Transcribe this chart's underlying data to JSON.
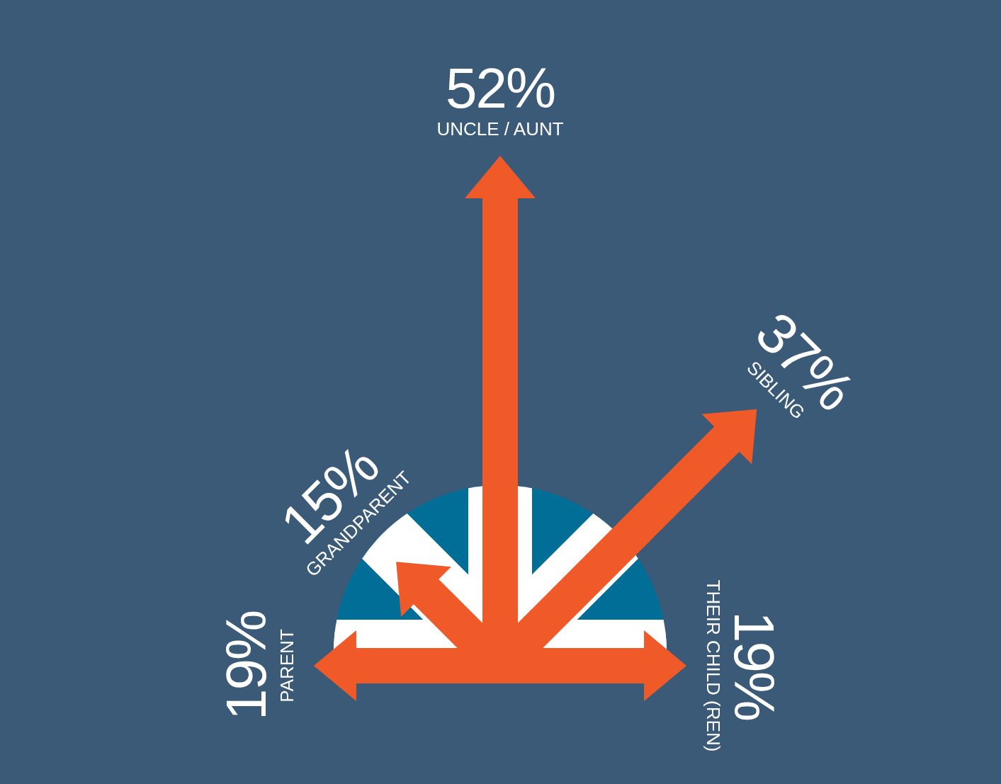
{
  "chart_data": {
    "type": "other",
    "categories": [
      "PARENT",
      "GRANDPARENT",
      "UNCLE / AUNT",
      "SIBLING",
      "THEIR CHILD (REN)"
    ],
    "values": [
      19,
      15,
      52,
      37,
      19
    ],
    "value_labels": [
      "19%",
      "15%",
      "52%",
      "37%",
      "19%"
    ],
    "color": "#f05a28"
  }
}
